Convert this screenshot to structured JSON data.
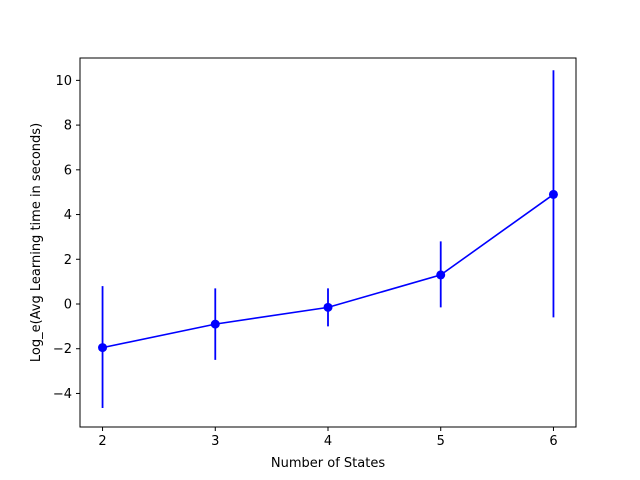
{
  "chart_data": {
    "type": "line",
    "title": "",
    "xlabel": "Number of States",
    "ylabel": "Log_e(Avg Learning time in seconds)",
    "x": [
      2,
      3,
      4,
      5,
      6
    ],
    "series": [
      {
        "values": [
          -1.95,
          -0.9,
          -0.15,
          1.3,
          4.9
        ],
        "err_low": [
          -4.65,
          -2.5,
          -1.0,
          -0.15,
          -0.6
        ],
        "err_high": [
          0.8,
          0.7,
          0.7,
          2.8,
          10.45
        ],
        "color": "#0000ff"
      }
    ],
    "xlim": [
      1.8,
      6.2
    ],
    "ylim": [
      -5.5,
      11.0
    ],
    "xticks": [
      2,
      3,
      4,
      5,
      6
    ],
    "yticks": [
      -4,
      -2,
      0,
      2,
      4,
      6,
      8,
      10
    ],
    "xtick_labels": [
      "2",
      "3",
      "4",
      "5",
      "6"
    ],
    "ytick_labels": [
      "−4",
      "−2",
      "0",
      "2",
      "4",
      "6",
      "8",
      "10"
    ],
    "grid": false,
    "legend": "none"
  }
}
